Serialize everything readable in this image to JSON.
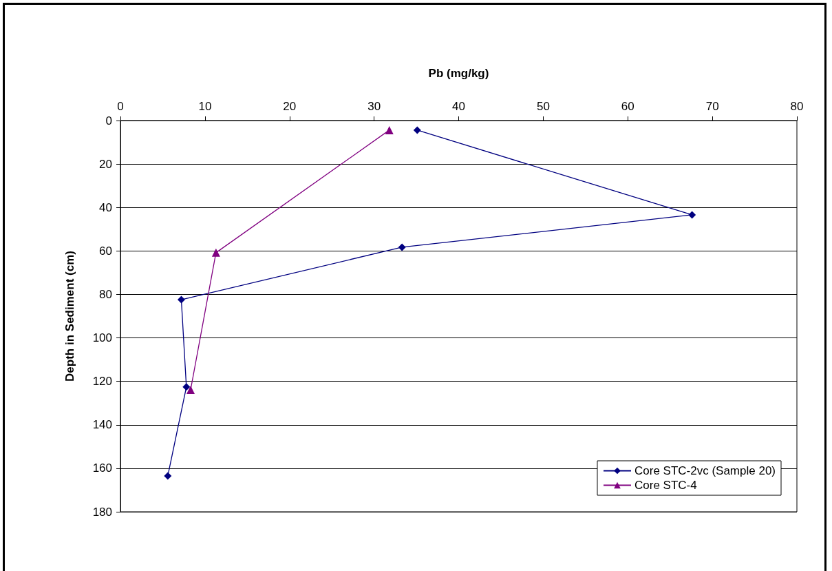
{
  "chart_data": {
    "type": "line",
    "xlabel": "Pb (mg/kg)",
    "ylabel": "Depth in Sediment (cm)",
    "xlim": [
      0,
      80
    ],
    "xticks": [
      0,
      10,
      20,
      30,
      40,
      50,
      60,
      70,
      80
    ],
    "ylim": [
      180,
      0
    ],
    "yticks": [
      0,
      20,
      40,
      60,
      80,
      100,
      120,
      140,
      160,
      180
    ],
    "grid": "y",
    "legend": "bottom right",
    "line_style": "solid",
    "series": [
      {
        "name": "Core STC-2vc (Sample 20)",
        "color": "#000080",
        "marker": "diamond",
        "x": [
          35.1,
          67.6,
          33.3,
          7.2,
          7.8,
          5.6
        ],
        "values": [
          4.4,
          43.4,
          58.3,
          82.4,
          122.6,
          163.5
        ]
      },
      {
        "name": "Core STC-4",
        "color": "#800080",
        "marker": "triangle",
        "x": [
          31.8,
          11.3,
          8.3
        ],
        "values": [
          4.4,
          60.8,
          123.9
        ]
      }
    ]
  }
}
